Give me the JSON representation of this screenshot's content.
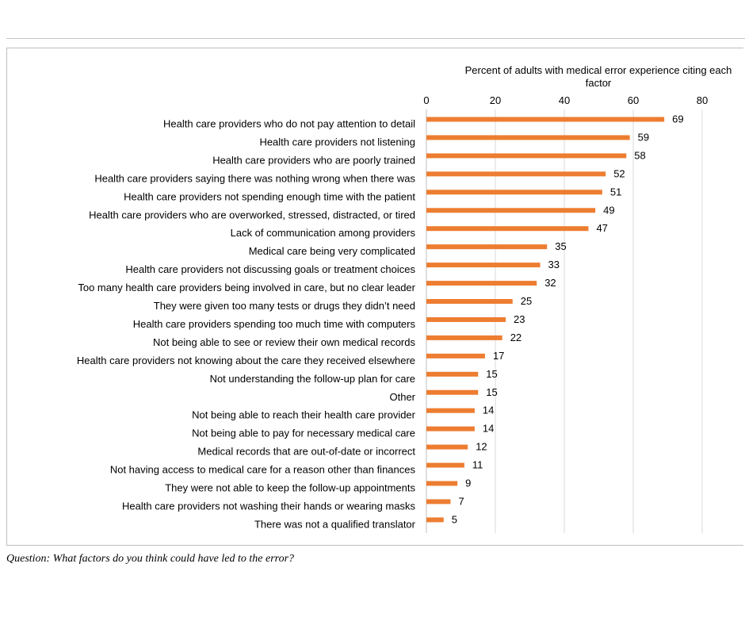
{
  "colors": {
    "bar": "#ED7D31",
    "grid": "#d9d9d9",
    "text": "#000000"
  },
  "chart_data": {
    "type": "bar",
    "orientation": "horizontal",
    "title": "",
    "xlabel": "Percent of adults with medical error experience citing each factor",
    "ylabel": "",
    "xlim": [
      0,
      80
    ],
    "xticks": [
      0,
      20,
      40,
      60,
      80
    ],
    "grid": true,
    "categories": [
      "Health care providers who do not pay attention to detail",
      "Health care providers not listening",
      "Health care providers who are poorly trained",
      "Health care providers saying there was nothing wrong when there was",
      "Health care providers not spending enough time with the patient",
      "Health care providers who are overworked, stressed, distracted, or tired",
      "Lack of communication among providers",
      "Medical care being very complicated",
      "Health care providers not discussing goals or treatment choices",
      "Too many health care providers being involved in care, but no clear leader",
      "They were given too many tests or drugs they didn’t need",
      "Health care providers spending too much time with computers",
      "Not being able to see or review their own medical records",
      "Health care providers not knowing about the care they received elsewhere",
      "Not understanding the follow-up plan for care",
      "Other",
      "Not being able to reach their health care provider",
      "Not being able to pay for necessary medical care",
      "Medical records that are out-of-date or incorrect",
      "Not having access to medical care for a reason other than finances",
      "They were not able to keep the follow-up appointments",
      "Health care providers not washing their hands or wearing masks",
      "There was not a qualified translator"
    ],
    "values": [
      69,
      59,
      58,
      52,
      51,
      49,
      47,
      35,
      33,
      32,
      25,
      23,
      22,
      17,
      15,
      15,
      14,
      14,
      12,
      11,
      9,
      7,
      5
    ]
  },
  "footnote": "Question: What factors do you think could have led to the error?"
}
